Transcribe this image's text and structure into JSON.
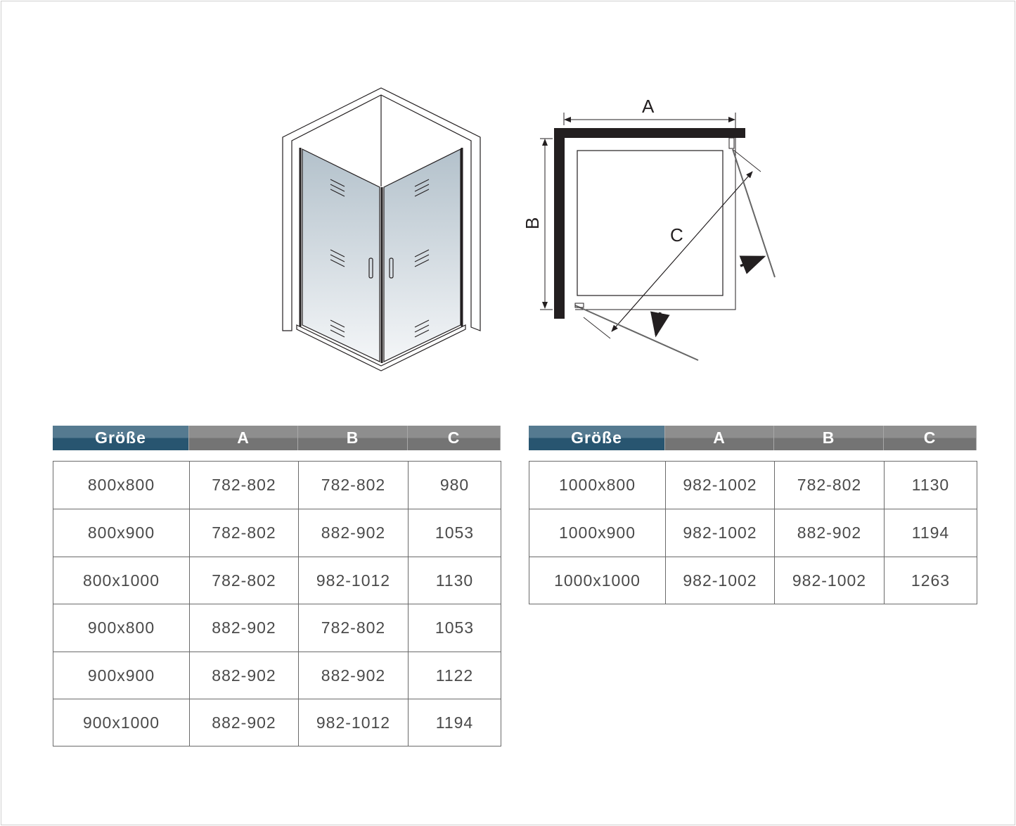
{
  "diagram_labels": {
    "a": "A",
    "b": "B",
    "c": "C"
  },
  "colors": {
    "header_size": "#285570",
    "header_dims": "#808080",
    "wall": "#231f20",
    "glass": "#b9c6cf"
  },
  "tables": [
    {
      "headers": [
        "Größe",
        "A",
        "B",
        "C"
      ],
      "rows": [
        [
          "800x800",
          "782-802",
          "782-802",
          "980"
        ],
        [
          "800x900",
          "782-802",
          "882-902",
          "1053"
        ],
        [
          "800x1000",
          "782-802",
          "982-1012",
          "1130"
        ],
        [
          "900x800",
          "882-902",
          "782-802",
          "1053"
        ],
        [
          "900x900",
          "882-902",
          "882-902",
          "1122"
        ],
        [
          "900x1000",
          "882-902",
          "982-1012",
          "1194"
        ]
      ]
    },
    {
      "headers": [
        "Größe",
        "A",
        "B",
        "C"
      ],
      "rows": [
        [
          "1000x800",
          "982-1002",
          "782-802",
          "1130"
        ],
        [
          "1000x900",
          "982-1002",
          "882-902",
          "1194"
        ],
        [
          "1000x1000",
          "982-1002",
          "982-1002",
          "1263"
        ]
      ]
    }
  ]
}
